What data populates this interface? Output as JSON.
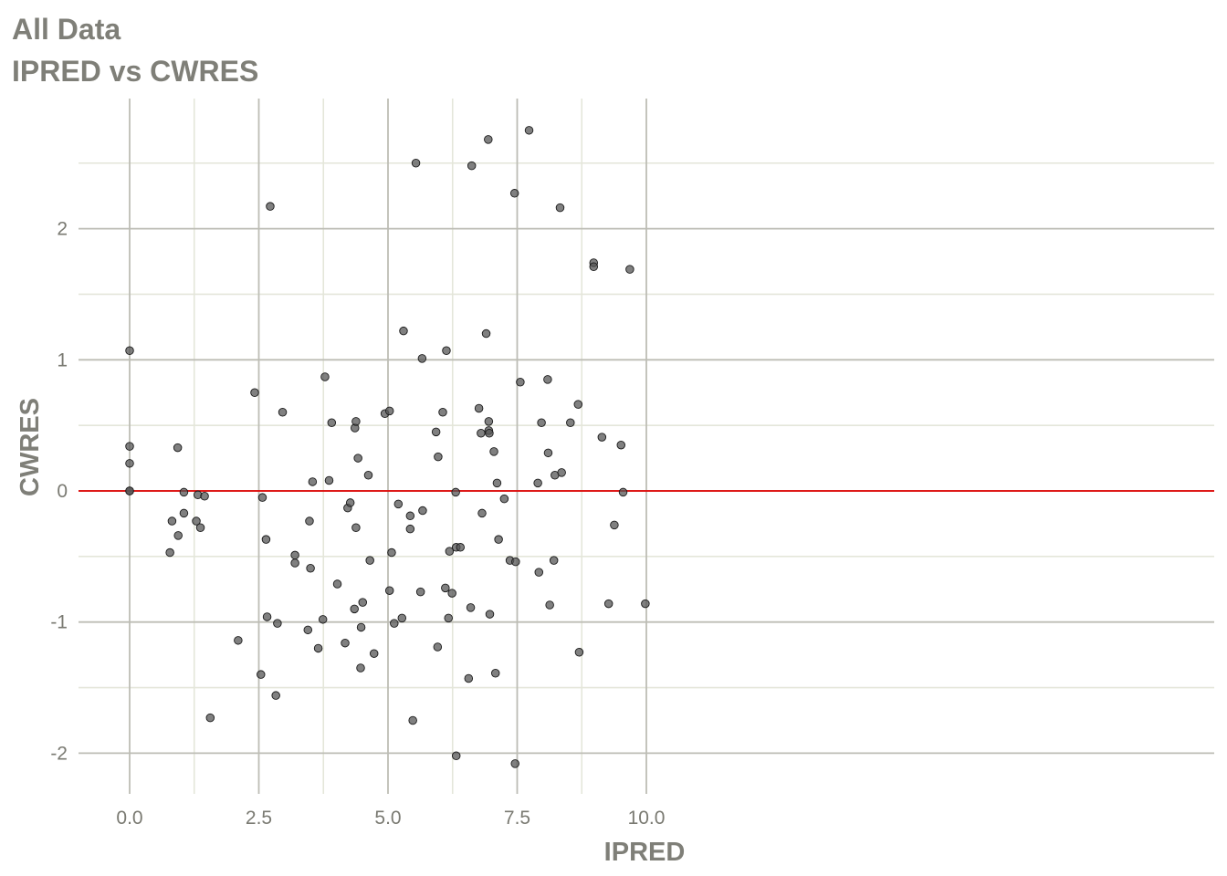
{
  "chart_data": {
    "type": "scatter",
    "title": "All Data",
    "subtitle": "IPRED vs CWRES",
    "xlabel": "IPRED",
    "ylabel": "CWRES",
    "xlim": [
      -0.5,
      10.5
    ],
    "ylim": [
      -2.3,
      3.0
    ],
    "x_ticks": [
      0,
      2.5,
      5,
      7.5,
      10
    ],
    "x_tick_labels": [
      "0.0",
      "2.5",
      "5.0",
      "7.5",
      "10.0"
    ],
    "y_ticks": [
      -2,
      -1,
      0,
      1,
      2
    ],
    "y_tick_labels": [
      "-2",
      "-1",
      "0",
      "1",
      "2"
    ],
    "reference_line": {
      "y": 0,
      "color": "#e00000"
    },
    "grid": true,
    "colors": {
      "point_fill": "#555555",
      "point_stroke": "#1a1a1a",
      "grid_major": "#bdbdb5",
      "grid_minor": "#e4e6da",
      "text": "#7f7f78"
    },
    "points": [
      [
        0.0,
        1.07
      ],
      [
        0.0,
        0.34
      ],
      [
        0.0,
        0.21
      ],
      [
        0.0,
        0.0
      ],
      [
        0.0,
        0.0
      ],
      [
        0.78,
        -0.47
      ],
      [
        0.82,
        -0.23
      ],
      [
        0.93,
        0.33
      ],
      [
        0.94,
        -0.34
      ],
      [
        1.05,
        -0.01
      ],
      [
        1.05,
        -0.17
      ],
      [
        1.29,
        -0.23
      ],
      [
        1.32,
        -0.03
      ],
      [
        1.37,
        -0.28
      ],
      [
        1.45,
        -0.04
      ],
      [
        1.56,
        -1.73
      ],
      [
        2.1,
        -1.14
      ],
      [
        2.42,
        0.75
      ],
      [
        2.54,
        -1.4
      ],
      [
        2.57,
        -0.05
      ],
      [
        2.64,
        -0.37
      ],
      [
        2.66,
        -0.96
      ],
      [
        2.72,
        2.17
      ],
      [
        2.83,
        -1.56
      ],
      [
        2.86,
        -1.01
      ],
      [
        2.96,
        0.6
      ],
      [
        3.2,
        -0.49
      ],
      [
        3.2,
        -0.55
      ],
      [
        3.45,
        -1.06
      ],
      [
        3.48,
        -0.23
      ],
      [
        3.5,
        -0.59
      ],
      [
        3.54,
        0.07
      ],
      [
        3.65,
        -1.2
      ],
      [
        3.74,
        -0.98
      ],
      [
        3.78,
        0.87
      ],
      [
        3.86,
        0.08
      ],
      [
        3.91,
        0.52
      ],
      [
        4.02,
        -0.71
      ],
      [
        4.17,
        -1.16
      ],
      [
        4.22,
        -0.13
      ],
      [
        4.27,
        -0.09
      ],
      [
        4.35,
        -0.9
      ],
      [
        4.36,
        0.48
      ],
      [
        4.38,
        0.53
      ],
      [
        4.38,
        -0.28
      ],
      [
        4.42,
        0.25
      ],
      [
        4.47,
        -1.35
      ],
      [
        4.48,
        -1.04
      ],
      [
        4.51,
        -0.85
      ],
      [
        4.62,
        0.12
      ],
      [
        4.65,
        -0.53
      ],
      [
        4.73,
        -1.24
      ],
      [
        4.94,
        0.59
      ],
      [
        5.03,
        0.61
      ],
      [
        5.03,
        -0.76
      ],
      [
        5.07,
        -0.47
      ],
      [
        5.12,
        -1.01
      ],
      [
        5.2,
        -0.1
      ],
      [
        5.27,
        -0.97
      ],
      [
        5.3,
        1.22
      ],
      [
        5.43,
        -0.19
      ],
      [
        5.43,
        -0.29
      ],
      [
        5.48,
        -1.75
      ],
      [
        5.54,
        2.5
      ],
      [
        5.63,
        -0.77
      ],
      [
        5.66,
        1.01
      ],
      [
        5.67,
        -0.15
      ],
      [
        5.93,
        0.45
      ],
      [
        5.96,
        -1.19
      ],
      [
        5.97,
        0.26
      ],
      [
        6.06,
        0.6
      ],
      [
        6.11,
        -0.74
      ],
      [
        6.13,
        1.07
      ],
      [
        6.17,
        -0.97
      ],
      [
        6.19,
        -0.46
      ],
      [
        6.24,
        -0.78
      ],
      [
        6.31,
        -0.01
      ],
      [
        6.32,
        -0.43
      ],
      [
        6.32,
        -2.02
      ],
      [
        6.4,
        -0.43
      ],
      [
        6.56,
        -1.43
      ],
      [
        6.6,
        -0.89
      ],
      [
        6.62,
        2.48
      ],
      [
        6.76,
        0.63
      ],
      [
        6.8,
        0.44
      ],
      [
        6.82,
        -0.17
      ],
      [
        6.9,
        1.2
      ],
      [
        6.94,
        2.68
      ],
      [
        6.95,
        0.53
      ],
      [
        6.95,
        0.46
      ],
      [
        6.96,
        0.44
      ],
      [
        6.97,
        -0.94
      ],
      [
        7.05,
        0.3
      ],
      [
        7.08,
        -1.39
      ],
      [
        7.11,
        0.06
      ],
      [
        7.14,
        -0.37
      ],
      [
        7.25,
        -0.06
      ],
      [
        7.36,
        -0.53
      ],
      [
        7.45,
        2.27
      ],
      [
        7.46,
        -2.08
      ],
      [
        7.47,
        -0.54
      ],
      [
        7.56,
        0.83
      ],
      [
        7.73,
        2.75
      ],
      [
        7.9,
        0.06
      ],
      [
        7.92,
        -0.62
      ],
      [
        7.97,
        0.52
      ],
      [
        8.09,
        0.85
      ],
      [
        8.1,
        0.29
      ],
      [
        8.13,
        -0.87
      ],
      [
        8.21,
        -0.53
      ],
      [
        8.23,
        0.12
      ],
      [
        8.33,
        2.16
      ],
      [
        8.36,
        0.14
      ],
      [
        8.53,
        0.52
      ],
      [
        8.68,
        0.66
      ],
      [
        8.7,
        -1.23
      ],
      [
        8.98,
        1.74
      ],
      [
        8.98,
        1.71
      ],
      [
        9.14,
        0.41
      ],
      [
        9.27,
        -0.86
      ],
      [
        9.38,
        -0.26
      ],
      [
        9.51,
        0.35
      ],
      [
        9.55,
        -0.01
      ],
      [
        9.68,
        1.69
      ],
      [
        9.98,
        -0.86
      ]
    ]
  }
}
